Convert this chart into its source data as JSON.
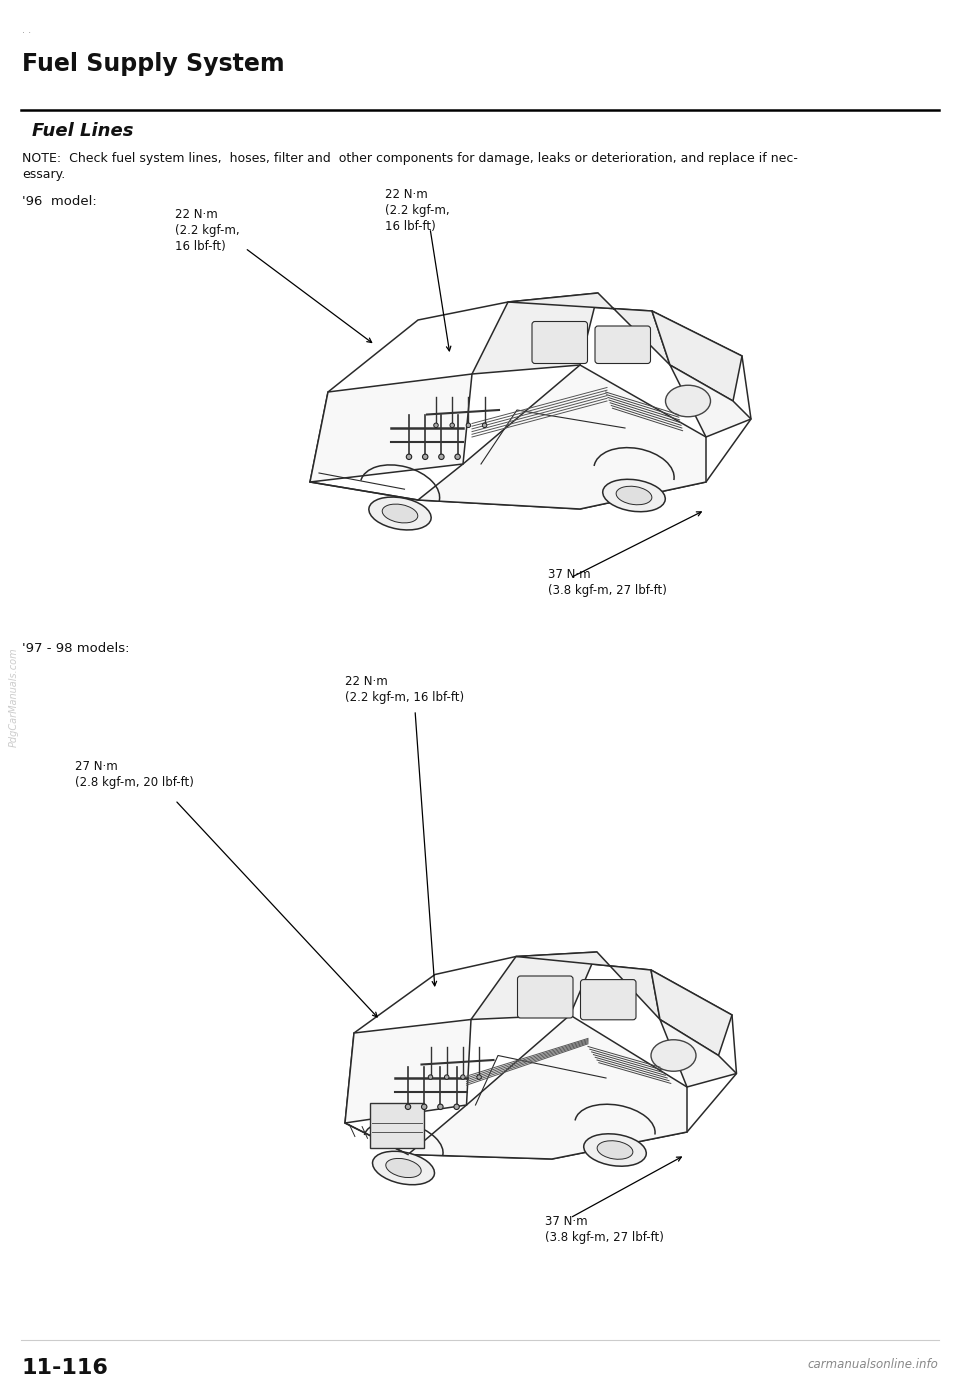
{
  "title": "Fuel Supply System",
  "subtitle": "Fuel Lines",
  "note_line1": "NOTE:  Check fuel system lines,  hoses, filter and  other components for damage, leaks or deterioration, and replace if nec-",
  "note_line2": "essary.",
  "model1_label": "'96  model:",
  "model2_label": "'97 - 98 models:",
  "page_number": "11-116",
  "website": "carmanualsonline.info",
  "watermark": "PdgCarManuals.com",
  "bg_color": "#ffffff",
  "text_color": "#000000",
  "ann96_left_text": "22 N·m\n(2.2 kgf-m,\n16 lbf-ft)",
  "ann96_right_text": "22 N·m\n(2.2 kgf-m,\n16 lbf-ft)",
  "ann96_bottom_text": "37 N·m\n(3.8 kgf-m, 27 lbf-ft)",
  "ann9798_top_text": "22 N·m\n(2.2 kgf-m, 16 lbf-ft)",
  "ann9798_left_text": "27 N·m\n(2.8 kgf-m, 20 lbf-ft)",
  "ann9798_bottom_text": "37 N·m\n(3.8 kgf-m, 27 lbf-ft)"
}
